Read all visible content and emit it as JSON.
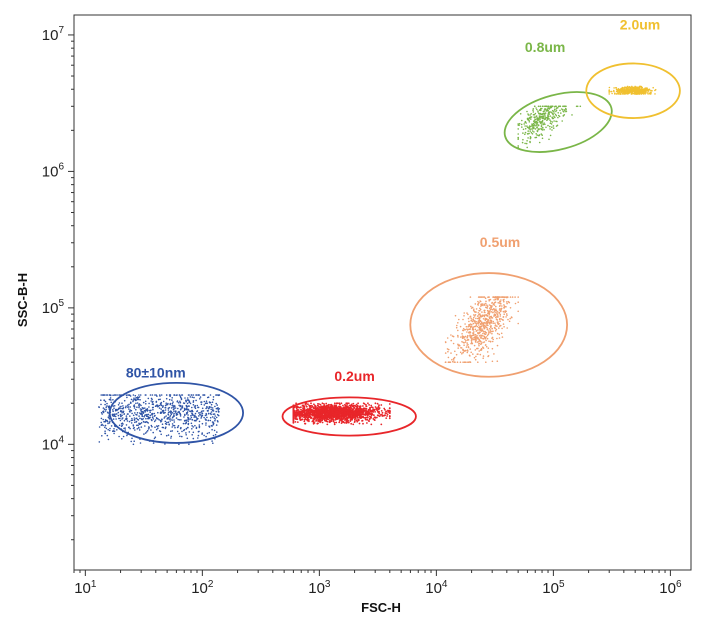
{
  "chart_data": {
    "type": "scatter",
    "xlabel": "FSC-H",
    "ylabel": "SSC-B-H",
    "x_scale": "log",
    "y_scale": "log",
    "xlim": [
      8,
      1500000
    ],
    "ylim": [
      1200,
      14000000
    ],
    "x_ticks": [
      {
        "value": 10,
        "base": "10",
        "exp": "1"
      },
      {
        "value": 100,
        "base": "10",
        "exp": "2"
      },
      {
        "value": 1000,
        "base": "10",
        "exp": "3"
      },
      {
        "value": 10000,
        "base": "10",
        "exp": "4"
      },
      {
        "value": 100000,
        "base": "10",
        "exp": "5"
      },
      {
        "value": 1000000,
        "base": "10",
        "exp": "6"
      }
    ],
    "y_ticks": [
      {
        "value": 10000,
        "base": "10",
        "exp": "4"
      },
      {
        "value": 100000,
        "base": "10",
        "exp": "5"
      },
      {
        "value": 1000000,
        "base": "10",
        "exp": "6"
      },
      {
        "value": 10000000,
        "base": "10",
        "exp": "7"
      }
    ],
    "grid": false,
    "legend": "none",
    "series": [
      {
        "name": "80±10nm",
        "color": "#2f54a6",
        "center_x": 42,
        "center_y": 17000,
        "spread_log_x": 0.5,
        "spread_log_y": 0.07,
        "x_range": [
          13,
          140
        ],
        "y_range": [
          10000,
          23000
        ]
      },
      {
        "name": "0.2um",
        "color": "#e8262a",
        "center_x": 1300,
        "center_y": 17000,
        "spread_log_x": 0.2,
        "spread_log_y": 0.03,
        "x_range": [
          600,
          4000
        ],
        "y_range": [
          14000,
          20000
        ]
      },
      {
        "name": "0.5um",
        "color": "#f0a070",
        "center_x": 25000,
        "center_y": 75000,
        "spread_log_x": 0.12,
        "spread_log_y": 0.1,
        "x_range": [
          12000,
          50000
        ],
        "y_range": [
          40000,
          120000
        ]
      },
      {
        "name": "0.8um",
        "color": "#7ab648",
        "center_x": 80000,
        "center_y": 2400000,
        "spread_log_x": 0.1,
        "spread_log_y": 0.06,
        "x_range": [
          50000,
          180000
        ],
        "y_range": [
          1500000,
          3000000
        ]
      },
      {
        "name": "2.0um",
        "color": "#f0c030",
        "center_x": 480000,
        "center_y": 3900000,
        "spread_log_x": 0.08,
        "spread_log_y": 0.015,
        "x_range": [
          300000,
          800000
        ],
        "y_range": [
          3700000,
          4200000
        ]
      }
    ]
  }
}
